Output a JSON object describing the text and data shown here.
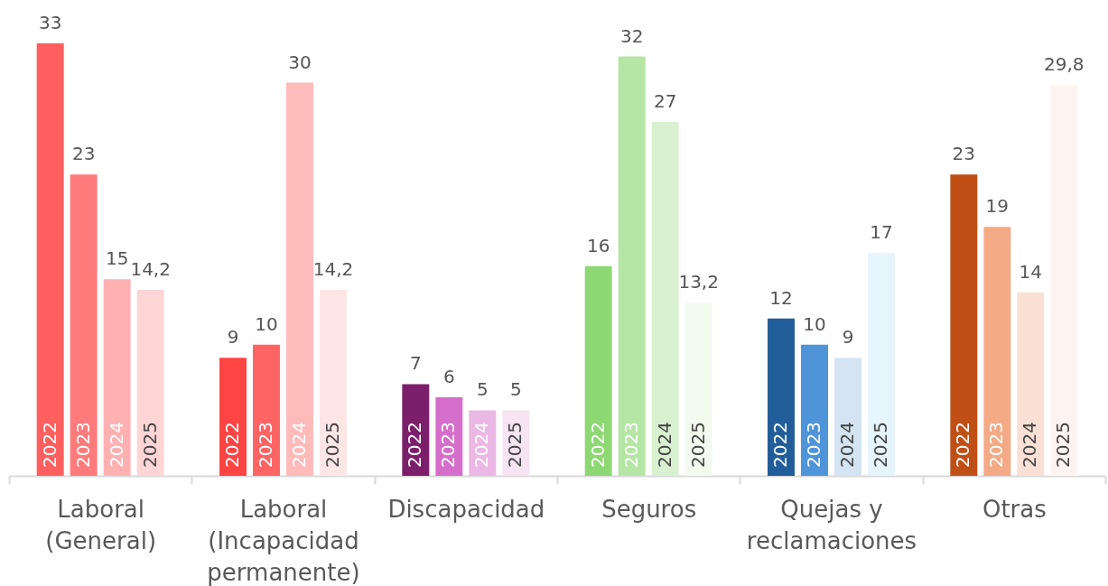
{
  "chart_data": {
    "type": "bar",
    "categories": [
      "Laboral (General)",
      "Laboral (Incapacidad permanente)",
      "Discapacidad",
      "Seguros",
      "Quejas y reclamaciones",
      "Otras"
    ],
    "series": [
      {
        "name": "2022",
        "colors": [
          "#ff5f5f",
          "#ff4444",
          "#7b1f6a",
          "#8ed873",
          "#215e99",
          "#c04f15"
        ],
        "values": [
          33,
          9,
          7,
          16,
          12,
          23
        ],
        "value_labels": [
          "33",
          "9",
          "7",
          "16",
          "12",
          "23"
        ]
      },
      {
        "name": "2023",
        "colors": [
          "#ff7b7b",
          "#ff6464",
          "#d66ecb",
          "#b5e6a5",
          "#4f93d8",
          "#f4aa85"
        ],
        "values": [
          23,
          10,
          6,
          32,
          10,
          19
        ],
        "value_labels": [
          "23",
          "10",
          "6",
          "32",
          "10",
          "19"
        ]
      },
      {
        "name": "2024",
        "colors": [
          "#ffb1b1",
          "#ffbaba",
          "#ebb7e4",
          "#d9f1d1",
          "#d4e4f3",
          "#fbe0d5"
        ],
        "values": [
          15,
          30,
          5,
          27,
          9,
          14
        ],
        "value_labels": [
          "15",
          "30",
          "5",
          "27",
          "9",
          "14"
        ]
      },
      {
        "name": "2025",
        "colors": [
          "#ffd5d5",
          "#ffe6e6",
          "#f6e4f2",
          "#f2fbee",
          "#e6f4fb",
          "#fff4f2"
        ],
        "values": [
          14.2,
          14.2,
          5,
          13.2,
          17,
          29.8
        ],
        "value_labels": [
          "14,2",
          "14,2",
          "5",
          "13,2",
          "17",
          "29,8"
        ]
      }
    ]
  }
}
